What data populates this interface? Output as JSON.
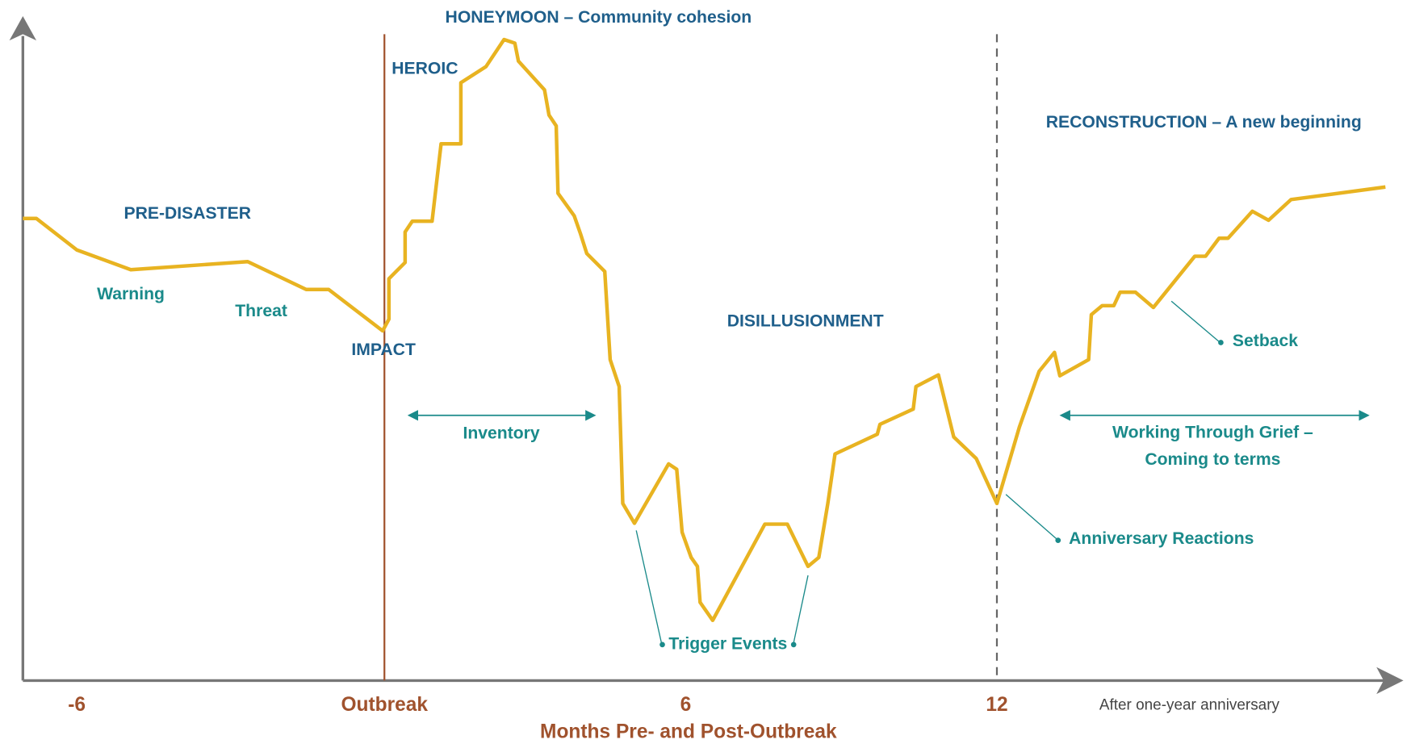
{
  "phases": {
    "honeymoon": "HONEYMOON – Community cohesion",
    "heroic": "HEROIC",
    "pre_disaster": "PRE-DISASTER",
    "impact": "IMPACT",
    "disillusionment": "DISILLUSIONMENT",
    "reconstruction": "RECONSTRUCTION – A new beginning"
  },
  "annotations": {
    "warning": "Warning",
    "threat": "Threat",
    "inventory": "Inventory",
    "trigger_events": "Trigger Events",
    "anniversary_reactions": "Anniversary Reactions",
    "setback": "Setback",
    "working_through_grief": [
      "Working Through Grief –",
      "Coming to terms"
    ]
  },
  "x_axis": {
    "ticks": [
      "-6",
      "Outbreak",
      "6",
      "12",
      "After one-year anniversary"
    ],
    "title": "Months Pre- and Post-Outbreak"
  }
}
